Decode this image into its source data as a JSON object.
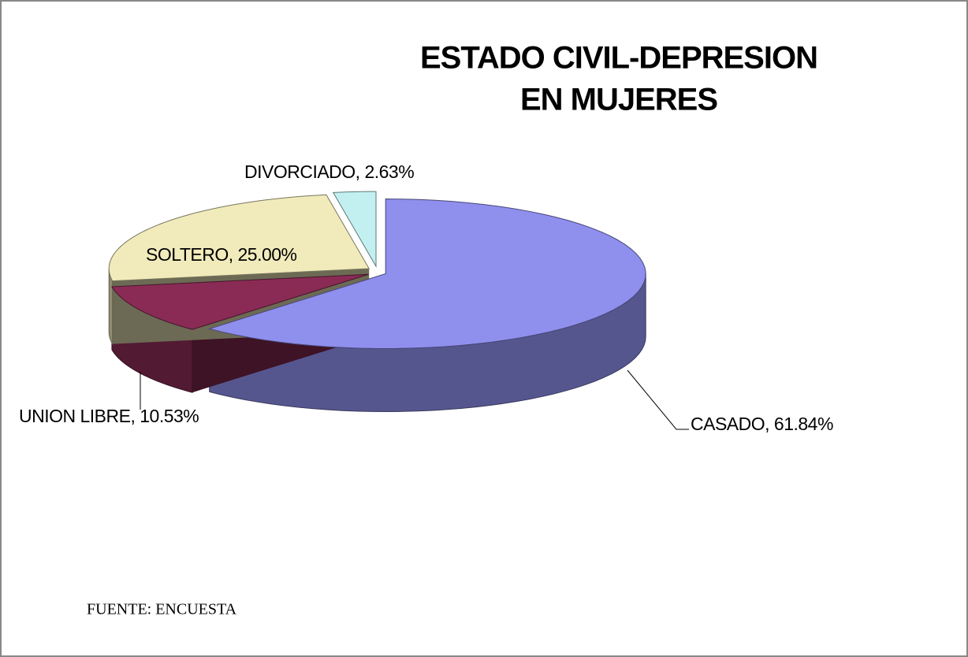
{
  "chart_data": {
    "type": "pie",
    "title": [
      "ESTADO CIVIL-DEPRESION",
      "EN MUJERES"
    ],
    "values": [
      61.84,
      10.53,
      25.0,
      2.63
    ],
    "value_labels": [
      "CASADO, 61.84%",
      "UNION LIBRE, 10.53%",
      "SOLTERO, 25.00%",
      "DIVORCIADO, 2.63%"
    ],
    "colors": [
      "#8f8fee",
      "#8a2b55",
      "#f1ebbb",
      "#c2f0f0"
    ],
    "source": "FUENTE: ENCUESTA"
  }
}
